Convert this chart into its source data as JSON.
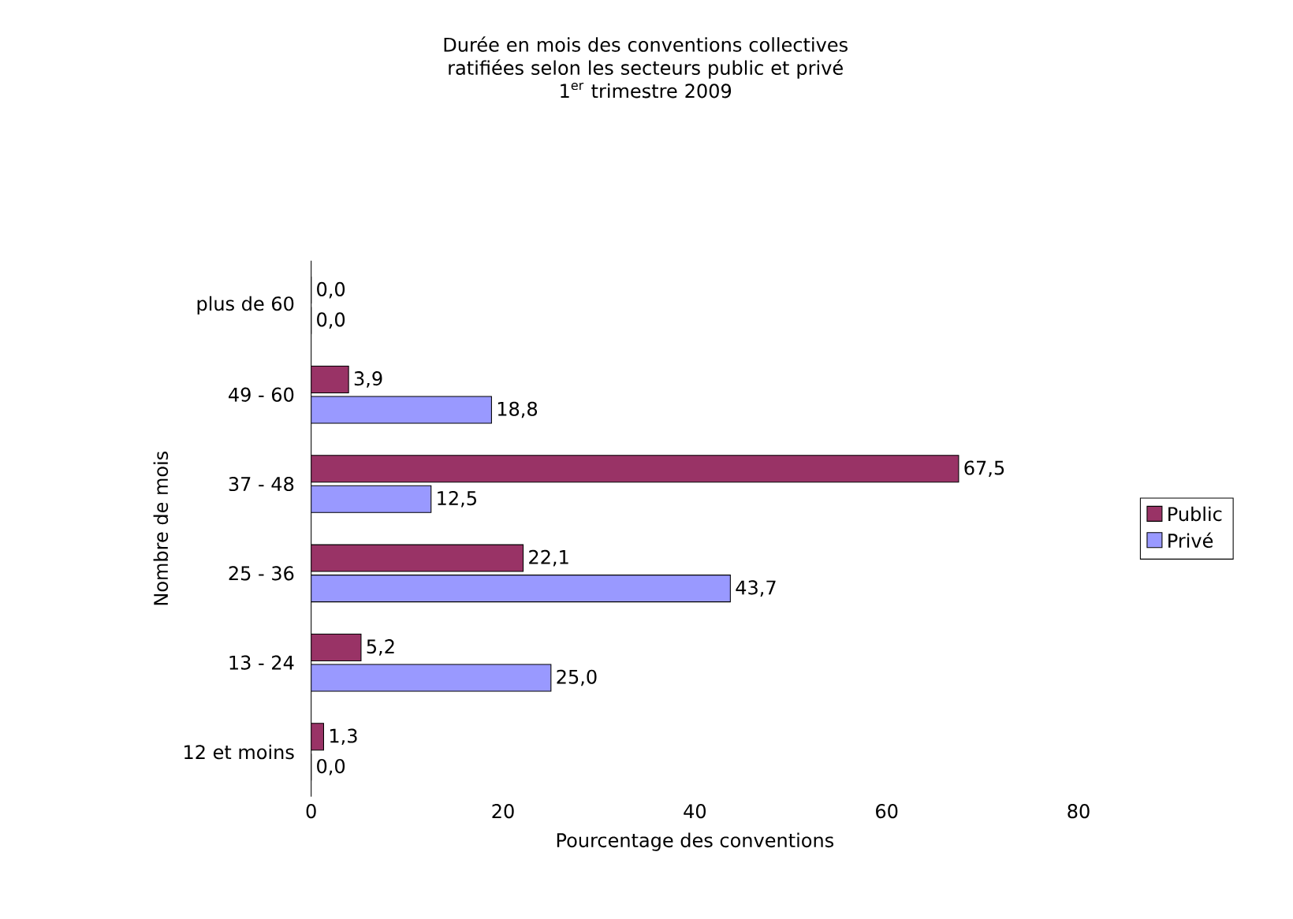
{
  "chart_data": {
    "type": "bar",
    "orientation": "horizontal",
    "title": "Durée en mois des conventions collectives ratifiées selon les secteurs public et privé",
    "subtitle": "1$^{er}$ trimestre 2009",
    "xlabel": "Pourcentage des conventions",
    "ylabel": "Nombre de mois",
    "categories": [
      "plus de 60",
      "49 - 60",
      "37 - 48",
      "25 - 36",
      "13 - 24",
      "12 et moins"
    ],
    "series": [
      {
        "name": "Public",
        "color": "#993366",
        "values": [
          0.0,
          3.9,
          67.5,
          22.1,
          5.2,
          1.3
        ],
        "value_labels": [
          "0,0",
          "3,9",
          "67,5",
          "22,1",
          "5,2",
          "1,3"
        ]
      },
      {
        "name": "Privé",
        "color": "#9999ff",
        "values": [
          0.0,
          18.8,
          12.5,
          43.7,
          25.0,
          0.0
        ],
        "value_labels": [
          "0,0",
          "18,8",
          "12,5",
          "43,7",
          "25,0",
          "0,0"
        ]
      }
    ],
    "xlim": [
      0,
      80
    ],
    "xticks": [
      0,
      20,
      40,
      60,
      80
    ],
    "legend": "right",
    "grid": false
  }
}
